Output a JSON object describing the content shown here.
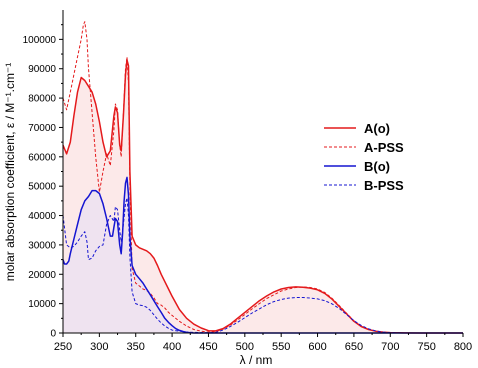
{
  "chart_data": {
    "type": "line",
    "title": "",
    "xlabel": "λ / nm",
    "ylabel": "molar absorption coefficient, ε / M⁻¹.cm⁻¹",
    "xlim": [
      250,
      800
    ],
    "ylim": [
      0,
      110000
    ],
    "xticks": [
      250,
      300,
      350,
      400,
      450,
      500,
      550,
      600,
      650,
      700,
      750,
      800
    ],
    "yticks": [
      0,
      10000,
      20000,
      30000,
      40000,
      50000,
      60000,
      70000,
      80000,
      90000,
      100000
    ],
    "grid": false,
    "legend_position": "right",
    "series": [
      {
        "name": "A(o)",
        "color": "#e41a1c",
        "style": "solid",
        "fill": "#fbe5e5",
        "x": [
          250,
          255,
          260,
          265,
          270,
          275,
          280,
          285,
          290,
          295,
          300,
          305,
          310,
          315,
          320,
          322,
          325,
          328,
          330,
          333,
          336,
          338,
          340,
          342,
          345,
          350,
          355,
          360,
          365,
          370,
          375,
          380,
          385,
          390,
          395,
          400,
          410,
          420,
          430,
          440,
          450,
          460,
          470,
          480,
          490,
          500,
          510,
          520,
          530,
          540,
          550,
          560,
          570,
          580,
          590,
          600,
          610,
          620,
          630,
          640,
          650,
          660,
          670,
          680,
          690,
          700,
          720,
          740,
          760,
          780,
          800
        ],
        "y": [
          64000,
          61000,
          65000,
          74000,
          82000,
          87000,
          86000,
          84000,
          82000,
          78000,
          72000,
          65000,
          60000,
          62000,
          74000,
          77000,
          75000,
          64000,
          62000,
          74000,
          88000,
          93000,
          91000,
          55000,
          33000,
          30000,
          29000,
          28500,
          28000,
          27000,
          25500,
          23000,
          20000,
          17500,
          15000,
          12500,
          8000,
          5000,
          3000,
          1700,
          800,
          700,
          1500,
          3000,
          5000,
          7000,
          9000,
          11000,
          12600,
          14000,
          15000,
          15500,
          15700,
          15600,
          15300,
          14700,
          13500,
          11500,
          9000,
          6500,
          4000,
          2200,
          1200,
          600,
          300,
          150,
          50,
          0,
          0,
          0,
          0
        ]
      },
      {
        "name": "A-PSS",
        "color": "#e41a1c",
        "style": "dashed",
        "x": [
          250,
          255,
          260,
          265,
          270,
          275,
          278,
          280,
          283,
          285,
          290,
          295,
          300,
          305,
          310,
          315,
          320,
          322,
          325,
          328,
          330,
          333,
          336,
          338,
          340,
          342,
          345,
          350,
          355,
          360,
          365,
          370,
          375,
          380,
          385,
          390,
          395,
          400,
          410,
          420,
          430,
          440,
          450,
          460,
          470,
          480,
          490,
          500,
          510,
          520,
          530,
          540,
          550,
          560,
          570,
          580,
          590,
          600,
          610,
          620,
          630,
          640,
          650,
          660,
          670,
          680,
          690,
          700,
          720,
          740,
          760,
          780,
          800
        ],
        "y": [
          80000,
          76000,
          82000,
          88000,
          94000,
          100000,
          105000,
          106000,
          100000,
          90000,
          75000,
          60000,
          48000,
          55000,
          61000,
          57000,
          69000,
          78000,
          76000,
          64000,
          60000,
          75000,
          90000,
          94000,
          85000,
          50000,
          22000,
          17000,
          16000,
          15000,
          14500,
          13500,
          12000,
          10000,
          9500,
          8500,
          7000,
          6000,
          4000,
          2400,
          1200,
          600,
          300,
          400,
          1300,
          2700,
          4400,
          6300,
          8200,
          10000,
          11700,
          13000,
          14300,
          15000,
          15500,
          15700,
          15500,
          15000,
          13800,
          11800,
          9300,
          6700,
          4200,
          2300,
          1200,
          600,
          250,
          100,
          0,
          0,
          0,
          0,
          0
        ]
      },
      {
        "name": "B(o)",
        "color": "#1515d1",
        "style": "solid",
        "fill": "#ece2f1",
        "x": [
          250,
          252,
          255,
          258,
          260,
          265,
          270,
          275,
          280,
          285,
          290,
          295,
          300,
          305,
          310,
          315,
          318,
          320,
          322,
          325,
          328,
          330,
          332,
          334,
          336,
          338,
          340,
          342,
          345,
          350,
          355,
          360,
          365,
          370,
          375,
          380,
          385,
          390,
          395,
          400,
          405,
          410,
          415,
          420,
          425,
          430,
          440,
          450,
          460,
          480,
          500,
          550,
          600,
          650,
          700,
          800
        ],
        "y": [
          25000,
          23500,
          23500,
          24500,
          27000,
          32000,
          37000,
          42000,
          45000,
          46500,
          48500,
          48500,
          47500,
          44000,
          39000,
          33000,
          33000,
          36000,
          39000,
          38000,
          30000,
          27000,
          34000,
          45000,
          51000,
          53000,
          47000,
          33000,
          23000,
          20000,
          18500,
          17000,
          15000,
          13000,
          11000,
          9000,
          7000,
          5000,
          3600,
          2500,
          1500,
          900,
          500,
          250,
          100,
          0,
          0,
          0,
          0,
          0,
          0,
          0,
          0,
          0,
          0,
          0
        ]
      },
      {
        "name": "B-PSS",
        "color": "#1515d1",
        "style": "dashed",
        "x": [
          250,
          255,
          260,
          265,
          270,
          275,
          280,
          283,
          285,
          290,
          295,
          300,
          305,
          310,
          315,
          320,
          322,
          325,
          328,
          330,
          333,
          336,
          338,
          340,
          342,
          345,
          350,
          355,
          360,
          365,
          370,
          375,
          380,
          385,
          390,
          395,
          400,
          410,
          420,
          430,
          440,
          450,
          460,
          470,
          480,
          490,
          500,
          510,
          520,
          530,
          540,
          550,
          560,
          570,
          580,
          590,
          600,
          610,
          620,
          630,
          640,
          650,
          660,
          670,
          680,
          690,
          700,
          720,
          740,
          760,
          780,
          800
        ],
        "y": [
          40000,
          30000,
          29000,
          29500,
          31000,
          33000,
          34500,
          31000,
          25000,
          25500,
          28000,
          29500,
          30000,
          37000,
          40000,
          38000,
          43000,
          42000,
          35000,
          31000,
          37000,
          44000,
          46000,
          40000,
          26000,
          14000,
          10000,
          9500,
          9300,
          8800,
          7700,
          6200,
          4700,
          3400,
          2400,
          1600,
          1000,
          600,
          300,
          200,
          150,
          100,
          200,
          1000,
          2200,
          3600,
          5200,
          6800,
          8200,
          9600,
          10700,
          11400,
          11900,
          12100,
          12100,
          11900,
          11600,
          11000,
          9900,
          8300,
          6300,
          4200,
          2600,
          1400,
          700,
          300,
          100,
          0,
          0,
          0,
          0,
          0
        ]
      }
    ]
  }
}
